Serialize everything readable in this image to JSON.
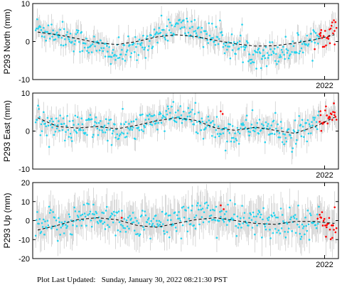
{
  "footer": {
    "label": "Plot Last Updated:",
    "timestamp": "Sunday, January 30, 2022 08:21:30 PST"
  },
  "colors": {
    "points": "#22d3ee",
    "recent_points": "#ff0000",
    "error_bars": "#c8c8c8",
    "model": "#000000"
  },
  "chart_data": [
    {
      "type": "scatter",
      "ylabel": "P293 North (mm)",
      "ylim": [
        -10,
        10
      ],
      "yticks": [
        -10,
        0,
        10
      ],
      "xlim": [
        2019.05,
        2022.14
      ],
      "xtick_value": 2022.0,
      "xtick_label": "2022",
      "model_curve": {
        "x": [
          2019.1,
          2019.3,
          2019.5,
          2019.7,
          2019.9,
          2020.1,
          2020.3,
          2020.5,
          2020.7,
          2020.9,
          2021.1,
          2021.3,
          2021.5,
          2021.7,
          2021.9,
          2022.1
        ],
        "y": [
          2.5,
          1.8,
          0.8,
          -0.3,
          -0.8,
          0.0,
          1.2,
          1.8,
          1.3,
          0.3,
          -0.6,
          -1.2,
          -1.1,
          -0.4,
          0.5,
          1.8
        ]
      },
      "observed_trend": {
        "x": [
          2019.1,
          2019.3,
          2019.5,
          2019.7,
          2019.9,
          2020.1,
          2020.3,
          2020.5,
          2020.7,
          2020.9,
          2021.1,
          2021.3,
          2021.5,
          2021.7,
          2021.9,
          2022.1
        ],
        "y": [
          3.5,
          2.2,
          0.5,
          -1.5,
          -3.5,
          -2.0,
          2.0,
          4.0,
          3.0,
          1.0,
          -1.5,
          -3.0,
          -3.0,
          -1.5,
          1.0,
          3.0
        ]
      },
      "scatter": 1.7,
      "error_bar": 2.5,
      "recent_from": 2021.95,
      "recent_points": [
        [
          2021.9,
          -2.0
        ],
        [
          2021.96,
          2.3
        ],
        [
          2022.05,
          3.2
        ],
        [
          2022.1,
          2.8
        ],
        [
          2022.12,
          3.6
        ]
      ],
      "point_count": 380
    },
    {
      "type": "scatter",
      "ylabel": "P293 East (mm)",
      "ylim": [
        -10,
        10
      ],
      "yticks": [
        -10,
        0,
        10
      ],
      "xlim": [
        2019.05,
        2022.14
      ],
      "xtick_value": 2022.0,
      "xtick_label": "2022",
      "model_curve": {
        "x": [
          2019.1,
          2019.3,
          2019.5,
          2019.7,
          2019.9,
          2020.1,
          2020.3,
          2020.5,
          2020.7,
          2020.9,
          2021.1,
          2021.3,
          2021.5,
          2021.7,
          2021.9,
          2022.1
        ],
        "y": [
          3.5,
          1.2,
          0.8,
          1.2,
          0.6,
          1.5,
          2.7,
          3.5,
          2.8,
          0.8,
          0.2,
          1.0,
          0.2,
          -0.6,
          1.2,
          3.6
        ]
      },
      "observed_trend": {
        "x": [
          2019.1,
          2019.3,
          2019.5,
          2019.7,
          2019.9,
          2020.1,
          2020.3,
          2020.5,
          2020.7,
          2020.9,
          2021.1,
          2021.3,
          2021.5,
          2021.7,
          2021.9,
          2022.1
        ],
        "y": [
          3.0,
          1.0,
          0.5,
          1.5,
          -0.5,
          1.0,
          3.0,
          4.0,
          3.0,
          0.5,
          -0.5,
          1.5,
          0.0,
          -1.5,
          1.5,
          4.0
        ]
      },
      "scatter": 1.8,
      "error_bar": 2.6,
      "recent_from": 2021.95,
      "recent_points": [
        [
          2020.95,
          5.2
        ],
        [
          2020.97,
          4.5
        ],
        [
          2021.96,
          4.2
        ],
        [
          2022.05,
          3.5
        ],
        [
          2022.1,
          4.2
        ],
        [
          2022.12,
          3.0
        ]
      ],
      "point_count": 380
    },
    {
      "type": "scatter",
      "ylabel": "P293 Up (mm)",
      "ylim": [
        -20,
        20
      ],
      "yticks": [
        -20,
        -10,
        0,
        10,
        20
      ],
      "xlim": [
        2019.05,
        2022.14
      ],
      "xtick_value": 2022.0,
      "xtick_label": "2022",
      "model_curve": {
        "x": [
          2019.1,
          2019.3,
          2019.5,
          2019.7,
          2019.9,
          2020.1,
          2020.3,
          2020.5,
          2020.7,
          2020.9,
          2021.1,
          2021.3,
          2021.5,
          2021.7,
          2021.9,
          2022.1
        ],
        "y": [
          -5.0,
          -2.5,
          0.5,
          1.5,
          0.5,
          -2.5,
          -3.5,
          -1.5,
          0.5,
          1.5,
          0.0,
          -1.5,
          -2.0,
          -0.5,
          -0.5,
          -1.5
        ]
      },
      "observed_trend": {
        "x": [
          2019.1,
          2019.3,
          2019.5,
          2019.7,
          2019.9,
          2020.1,
          2020.3,
          2020.5,
          2020.7,
          2020.9,
          2021.1,
          2021.3,
          2021.5,
          2021.7,
          2021.9,
          2022.1
        ],
        "y": [
          -4.0,
          -2.0,
          1.0,
          3.0,
          1.0,
          -2.0,
          -3.0,
          0.0,
          4.0,
          3.0,
          0.0,
          -1.0,
          -1.5,
          0.0,
          -1.0,
          -2.0
        ]
      },
      "scatter": 4.2,
      "error_bar": 8.0,
      "recent_from": 2021.95,
      "recent_points": [
        [
          2019.95,
          1.5
        ],
        [
          2020.95,
          8.0
        ],
        [
          2020.98,
          6.0
        ],
        [
          2021.93,
          1.0
        ],
        [
          2022.02,
          -3.5
        ],
        [
          2022.08,
          -2.5
        ],
        [
          2022.12,
          -4.0
        ]
      ],
      "point_count": 380
    }
  ]
}
